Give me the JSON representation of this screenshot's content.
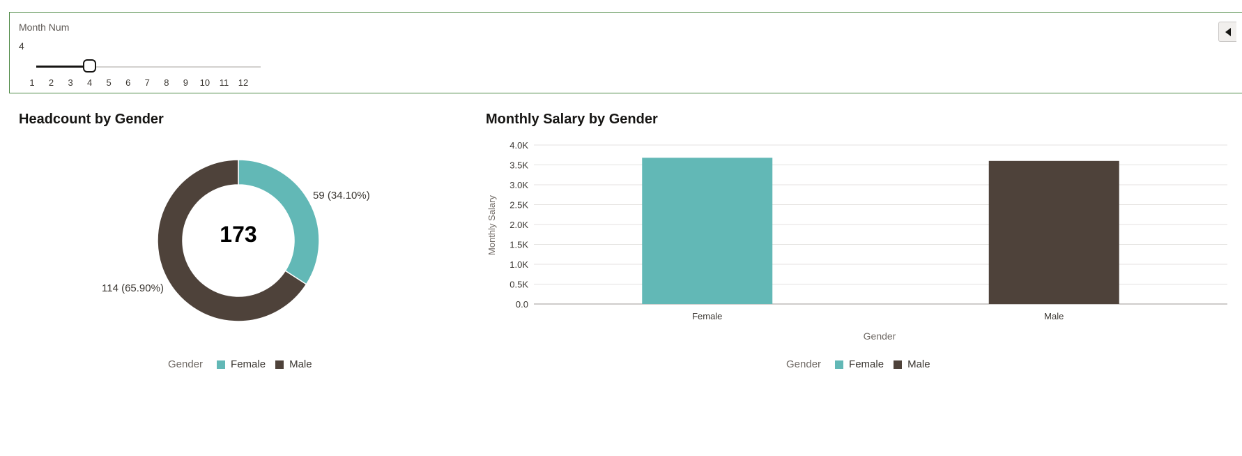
{
  "filter": {
    "label": "Month Num",
    "value": "4",
    "slider": {
      "min": 1,
      "max": 12,
      "current": 4,
      "ticks": [
        "1",
        "2",
        "3",
        "4",
        "5",
        "6",
        "7",
        "8",
        "9",
        "10",
        "11",
        "12"
      ]
    }
  },
  "colors": {
    "female": "#62b8b6",
    "male": "#4e423a",
    "accent": "#4f8a46"
  },
  "headcount": {
    "title": "Headcount by Gender",
    "total": "173",
    "chart_data": {
      "type": "pie",
      "slices": [
        {
          "name": "Female",
          "value": 59,
          "label": "59 (34.10%)"
        },
        {
          "name": "Male",
          "value": 114,
          "label": "114 (65.90%)"
        }
      ]
    },
    "legend": {
      "title": "Gender",
      "items": [
        "Female",
        "Male"
      ]
    }
  },
  "salary": {
    "title": "Monthly Salary by Gender",
    "chart_data": {
      "type": "bar",
      "categories": [
        "Female",
        "Male"
      ],
      "values": [
        3680,
        3600
      ],
      "xlabel": "Gender",
      "ylabel": "Monthly Salary",
      "ylim": [
        0,
        4000
      ],
      "yticks": [
        "0.0",
        "0.5K",
        "1.0K",
        "1.5K",
        "2.0K",
        "2.5K",
        "3.0K",
        "3.5K",
        "4.0K"
      ],
      "grid": true
    },
    "legend": {
      "title": "Gender",
      "items": [
        "Female",
        "Male"
      ]
    }
  }
}
